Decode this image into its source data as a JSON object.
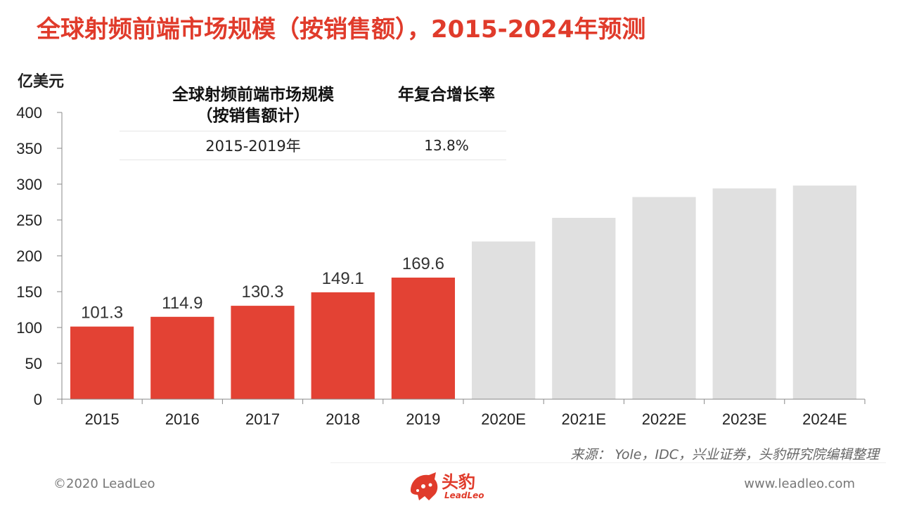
{
  "title": "全球射频前端市场规模（按销售额），2015-2024年预测",
  "unit": "亿美元",
  "cagr_table": {
    "header_col1_line1": "全球射频前端市场规模",
    "header_col1_line2": "（按销售额计）",
    "header_col2": "年复合增长率",
    "row_period": "2015-2019年",
    "row_value": "13.8%"
  },
  "source": "来源：  Yole，IDC，兴业证券，头豹研究院编辑整理",
  "copyright": "©2020 LeadLeo",
  "website": "www.leadleo.com",
  "logo": {
    "name": "头豹",
    "sub": "LeadLeo",
    "icon": "leopard-logo-icon"
  },
  "colors": {
    "accent": "#e34234",
    "forecast": "#e0e0e0",
    "title": "#e03b2b"
  },
  "chart_data": {
    "type": "bar",
    "categories": [
      "2015",
      "2016",
      "2017",
      "2018",
      "2019",
      "2020E",
      "2021E",
      "2022E",
      "2023E",
      "2024E"
    ],
    "values": [
      101.3,
      114.9,
      130.3,
      149.1,
      169.6,
      220,
      253,
      282,
      294,
      298
    ],
    "labels": [
      "101.3",
      "114.9",
      "130.3",
      "149.1",
      "169.6",
      "",
      "",
      "",
      "",
      ""
    ],
    "forecast": [
      false,
      false,
      false,
      false,
      false,
      true,
      true,
      true,
      true,
      true
    ],
    "ylim": [
      0,
      400
    ],
    "yticks": [
      0,
      50,
      100,
      150,
      200,
      250,
      300,
      350,
      400
    ],
    "ylabel": "亿美元",
    "grid": false
  }
}
